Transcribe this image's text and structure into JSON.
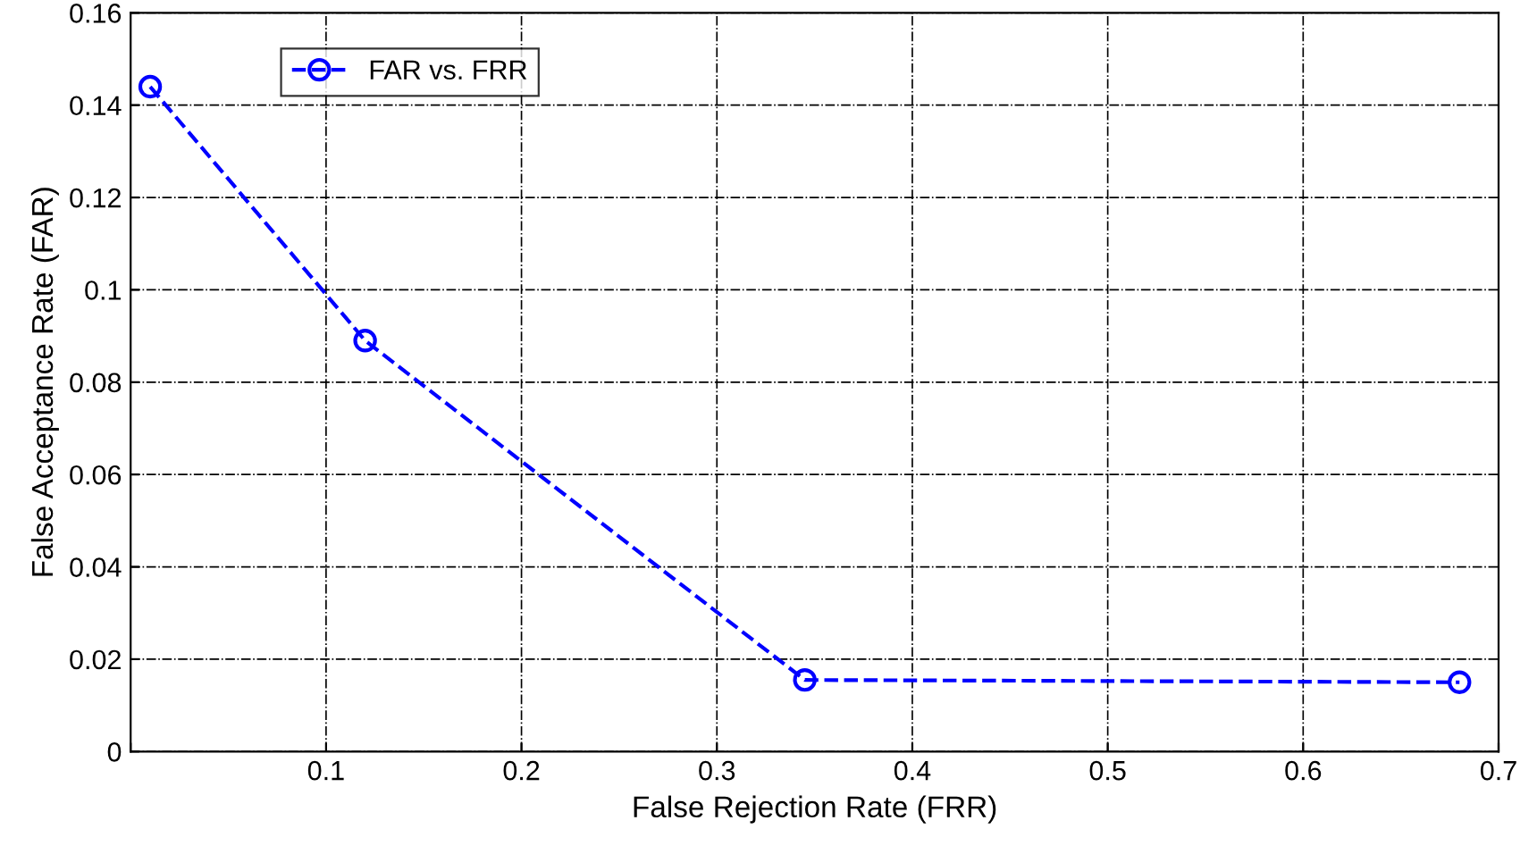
{
  "chart_data": {
    "type": "line",
    "xlabel": "False Rejection Rate (FRR)",
    "ylabel": "False Acceptance Rate (FAR)",
    "x": [
      0.01,
      0.12,
      0.345,
      0.68
    ],
    "series": [
      {
        "name": "FAR vs. FRR",
        "color": "#0000ff",
        "values": [
          0.144,
          0.089,
          0.0155,
          0.015
        ]
      }
    ],
    "xlim": [
      0,
      0.7
    ],
    "xticks": [
      {
        "value": 0,
        "label": null
      },
      0.1,
      0.2,
      0.3,
      0.4,
      0.5,
      0.6,
      0.7
    ],
    "ylim": [
      0,
      0.16
    ],
    "yticks": [
      0,
      0.02,
      0.04,
      0.06,
      0.08,
      0.1,
      0.12,
      0.14,
      0.16
    ],
    "grid": true,
    "legend": "top left",
    "marker": "circle",
    "line_style": "dashed"
  }
}
